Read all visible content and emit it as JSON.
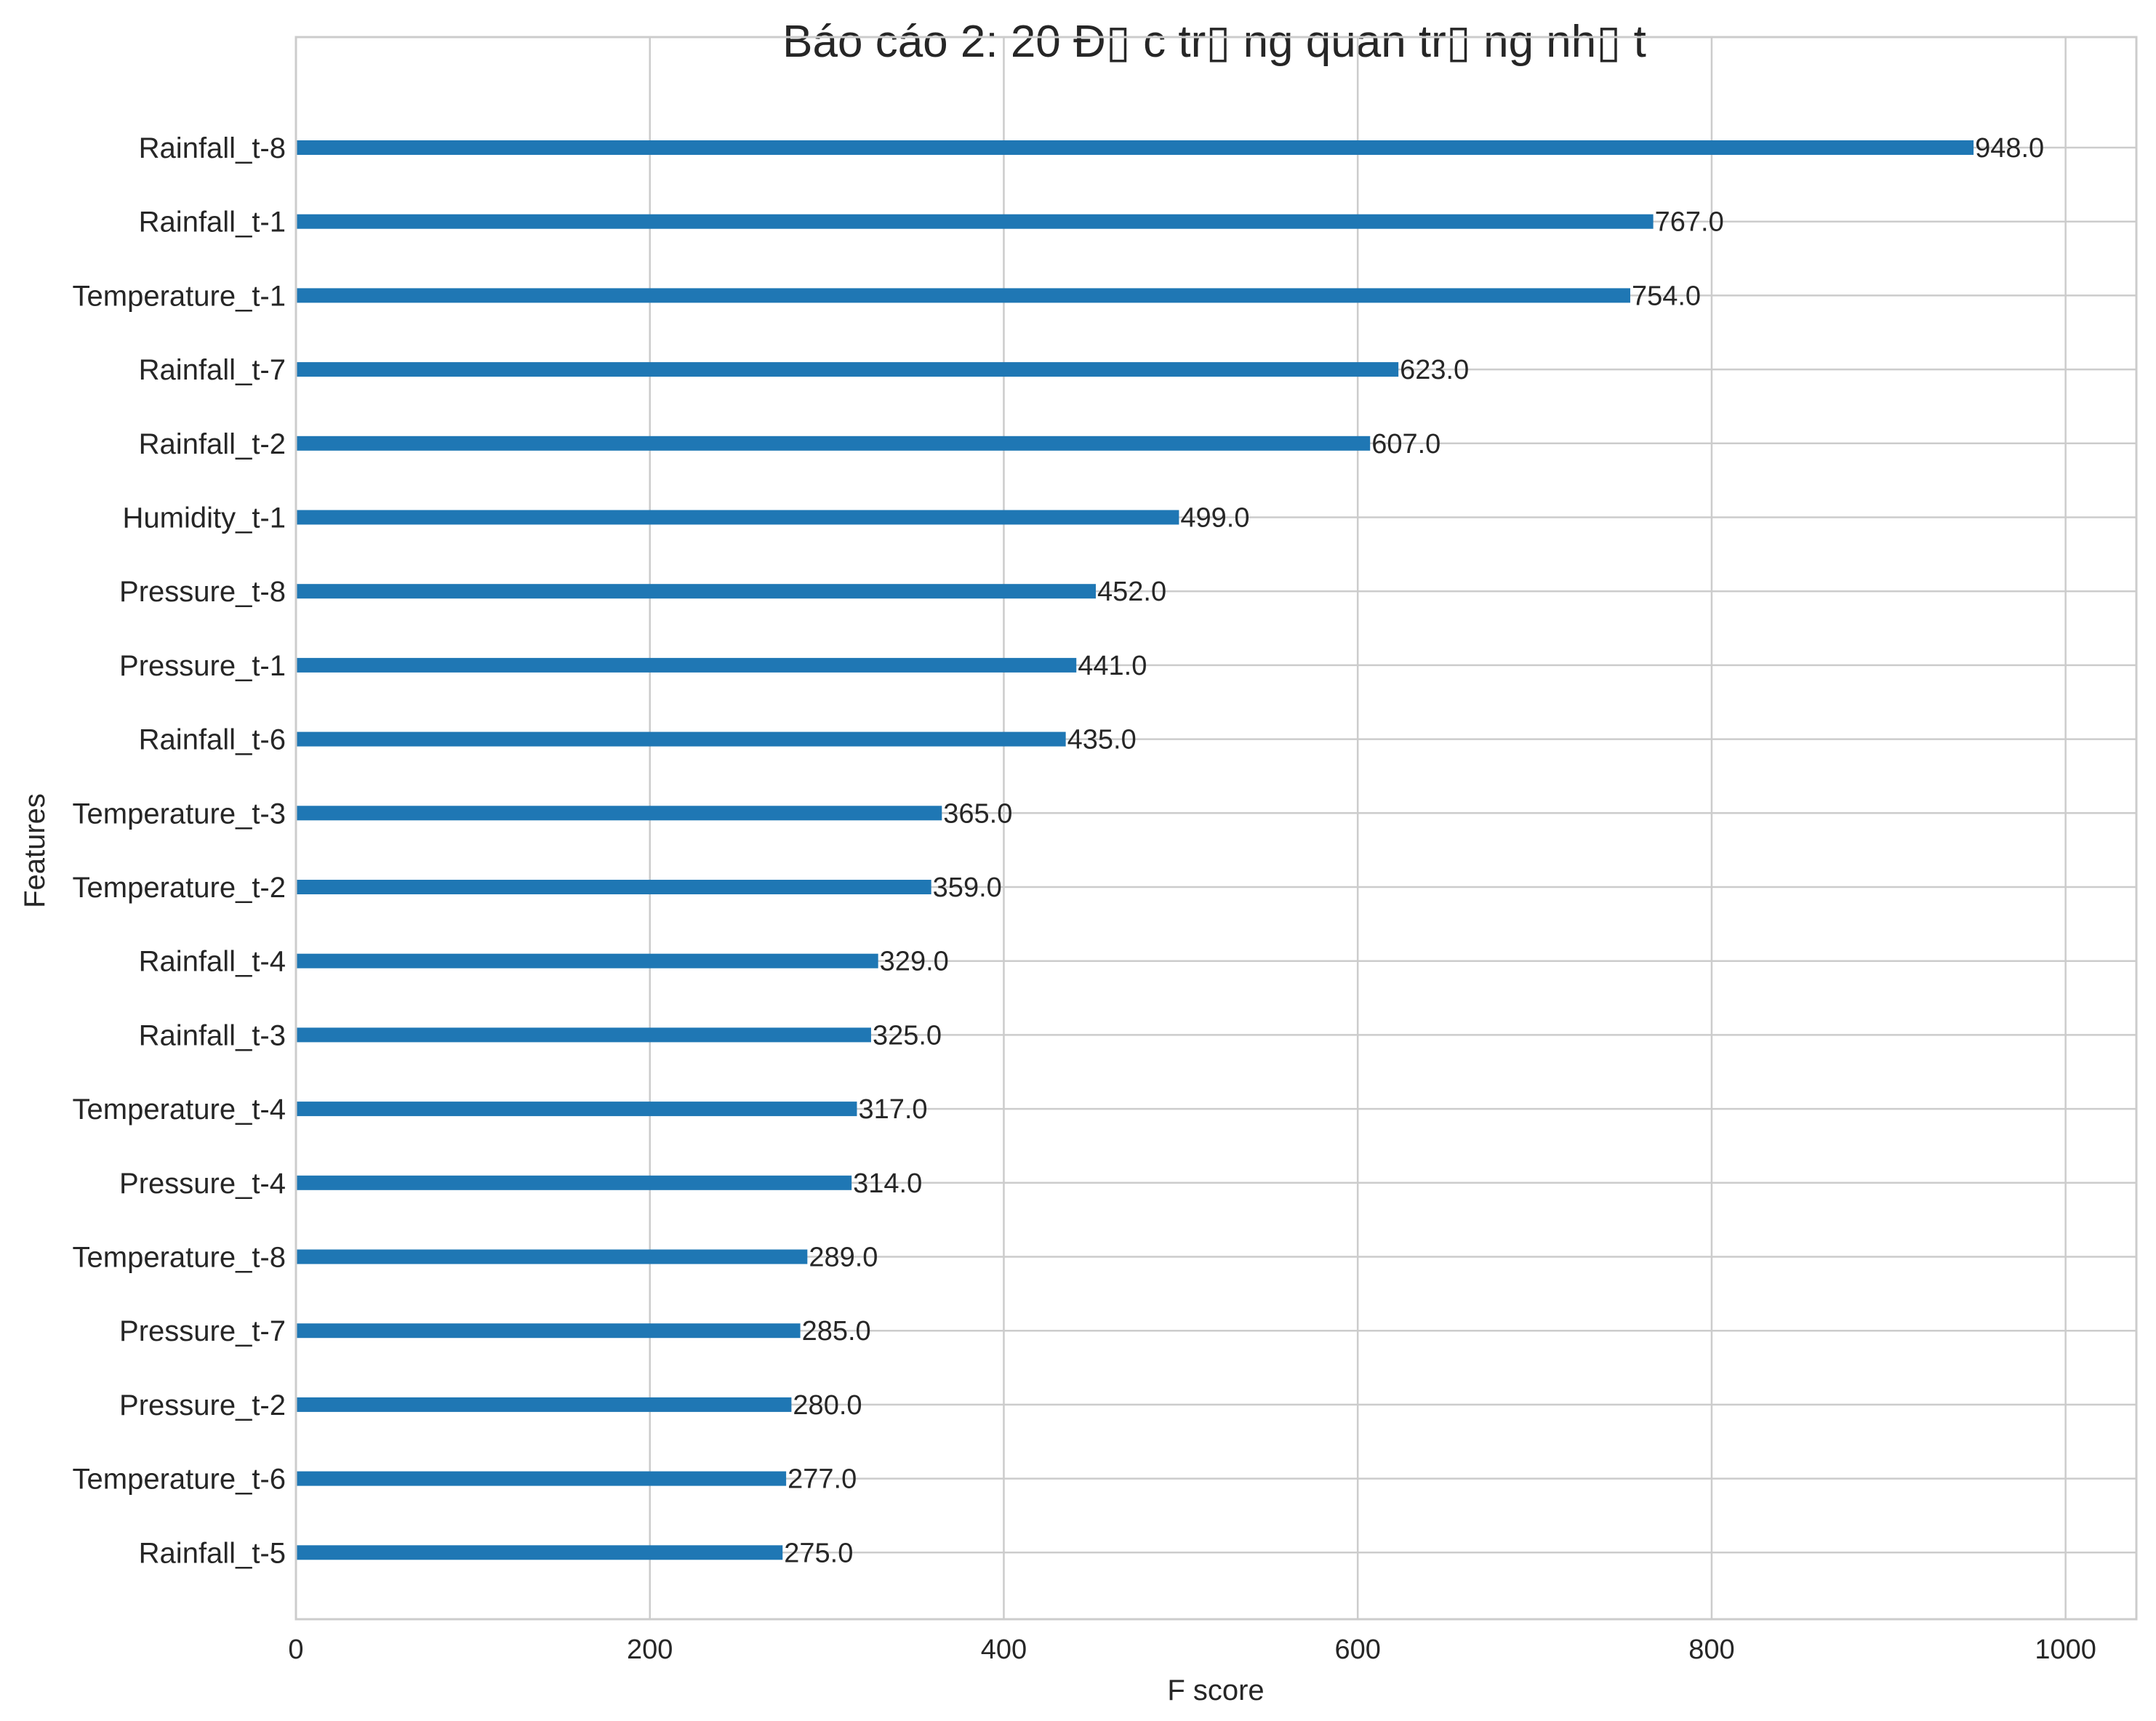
{
  "chart_data": {
    "type": "bar",
    "orientation": "horizontal",
    "title": "Báo cáo 2: 20 Đ▯ c tr▯ ng quan tr▯ ng nh▯ t",
    "xlabel": "F score",
    "ylabel": "Features",
    "xlim": [
      0,
      1040
    ],
    "xticks": [
      0,
      200,
      400,
      600,
      800,
      1000
    ],
    "xtick_labels": [
      "0",
      "200",
      "400",
      "600",
      "800",
      "1000"
    ],
    "grid": true,
    "legend": "none",
    "colors": {
      "bar": "#1f77b4",
      "grid": "#cccccc",
      "text": "#262626"
    },
    "categories": [
      "Rainfall_t-8",
      "Rainfall_t-1",
      "Temperature_t-1",
      "Rainfall_t-7",
      "Rainfall_t-2",
      "Humidity_t-1",
      "Pressure_t-8",
      "Pressure_t-1",
      "Rainfall_t-6",
      "Temperature_t-3",
      "Temperature_t-2",
      "Rainfall_t-4",
      "Rainfall_t-3",
      "Temperature_t-4",
      "Pressure_t-4",
      "Temperature_t-8",
      "Pressure_t-7",
      "Pressure_t-2",
      "Temperature_t-6",
      "Rainfall_t-5"
    ],
    "values": [
      948,
      767,
      754,
      623,
      607,
      499,
      452,
      441,
      435,
      365,
      359,
      329,
      325,
      317,
      314,
      289,
      285,
      280,
      277,
      275
    ],
    "value_labels": [
      "948.0",
      "767.0",
      "754.0",
      "623.0",
      "607.0",
      "499.0",
      "452.0",
      "441.0",
      "435.0",
      "365.0",
      "359.0",
      "329.0",
      "325.0",
      "317.0",
      "314.0",
      "289.0",
      "285.0",
      "280.0",
      "277.0",
      "275.0"
    ]
  }
}
